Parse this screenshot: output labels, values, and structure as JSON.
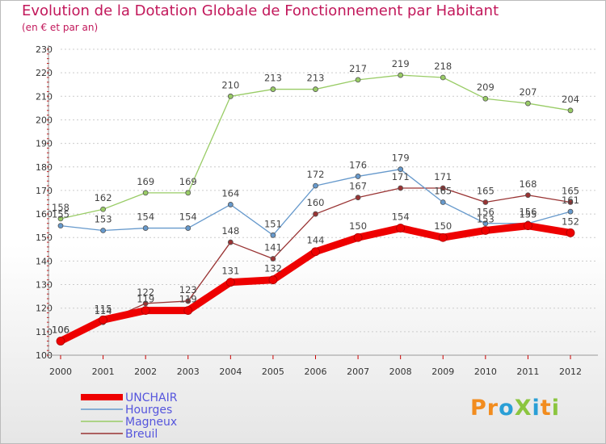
{
  "header": {
    "title": "Evolution de la Dotation Globale de Fonctionnement par Habitant",
    "subtitle": "(en € et par an)"
  },
  "logo": {
    "text": "ProXiti",
    "letters": [
      {
        "ch": "P",
        "color": "#f28c1e"
      },
      {
        "ch": "r",
        "color": "#f28c1e"
      },
      {
        "ch": "o",
        "color": "#2a9fd6"
      },
      {
        "ch": "X",
        "color": "#8bc53f"
      },
      {
        "ch": "i",
        "color": "#2a9fd6"
      },
      {
        "ch": "t",
        "color": "#f28c1e"
      },
      {
        "ch": "i",
        "color": "#8bc53f"
      }
    ]
  },
  "chart_data": {
    "type": "line",
    "title": "Evolution de la Dotation Globale de Fonctionnement par Habitant",
    "subtitle": "(en € et par an)",
    "xlabel": "",
    "ylabel": "",
    "x": [
      "2000",
      "2001",
      "2002",
      "2003",
      "2004",
      "2005",
      "2006",
      "2007",
      "2008",
      "2009",
      "2010",
      "2011",
      "2012"
    ],
    "ylim": [
      100,
      230
    ],
    "yticks": [
      100,
      110,
      120,
      130,
      140,
      150,
      160,
      170,
      180,
      190,
      200,
      210,
      220,
      230
    ],
    "grid": "horizontal dotted",
    "legend_position": "bottom-left",
    "series": [
      {
        "name": "UNCHAIR",
        "color": "#ee0000",
        "values": [
          106,
          115,
          119,
          119,
          131,
          132,
          144,
          150,
          154,
          150,
          153,
          155,
          152
        ]
      },
      {
        "name": "Hourges",
        "color": "#6699cc",
        "values": [
          155,
          153,
          154,
          154,
          164,
          151,
          172,
          176,
          179,
          165,
          156,
          156,
          161
        ]
      },
      {
        "name": "Magneux",
        "color": "#99cc66",
        "values": [
          158,
          162,
          169,
          169,
          210,
          213,
          213,
          217,
          219,
          218,
          209,
          207,
          204
        ]
      },
      {
        "name": "Breuil",
        "color": "#993333",
        "values": [
          106,
          114,
          122,
          123,
          148,
          141,
          160,
          167,
          171,
          171,
          165,
          168,
          165
        ]
      }
    ]
  }
}
